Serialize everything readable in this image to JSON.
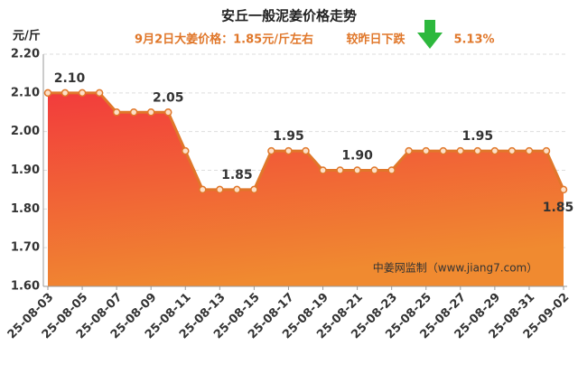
{
  "chart_data": {
    "type": "area",
    "title": "安丘一般泥姜价格走势",
    "subtitle": "9月2日大姜价格：1.85元/斤左右",
    "change_label": "较昨日下跌",
    "change_value": "5.13%",
    "y_label": "元/斤",
    "watermark": "中姜网监制（www.jiang7.com）",
    "categories": [
      "25-08-03",
      null,
      "25-08-05",
      null,
      "25-08-07",
      null,
      "25-08-09",
      null,
      "25-08-11",
      null,
      "25-08-13",
      null,
      "25-08-15",
      null,
      "25-08-17",
      null,
      "25-08-19",
      null,
      "25-08-21",
      null,
      "25-08-23",
      null,
      "25-08-25",
      null,
      "25-08-27",
      null,
      "25-08-29",
      null,
      "25-08-31",
      null,
      "25-09-02"
    ],
    "values": [
      2.1,
      2.1,
      2.1,
      2.1,
      2.05,
      2.05,
      2.05,
      2.05,
      1.95,
      1.85,
      1.85,
      1.85,
      1.85,
      1.95,
      1.95,
      1.95,
      1.9,
      1.9,
      1.9,
      1.9,
      1.9,
      1.95,
      1.95,
      1.95,
      1.95,
      1.95,
      1.95,
      1.95,
      1.95,
      1.95,
      1.85
    ],
    "value_labels": [
      "2.10",
      null,
      null,
      null,
      null,
      null,
      null,
      "2.05",
      null,
      null,
      null,
      "1.85",
      null,
      null,
      "1.95",
      null,
      null,
      null,
      "1.90",
      null,
      null,
      null,
      null,
      null,
      null,
      "1.95",
      null,
      null,
      null,
      null,
      "1.85"
    ],
    "color": "#e0772a",
    "ylim": [
      1.6,
      2.2
    ],
    "yticks": [
      {
        "value": 1.6,
        "label": "1.60"
      },
      {
        "value": 1.7,
        "label": "1.70"
      },
      {
        "value": 1.8,
        "label": "1.80"
      },
      {
        "value": 1.9,
        "label": "1.90"
      },
      {
        "value": 2.0,
        "label": "2.00"
      },
      {
        "value": 2.1,
        "label": "2.10"
      },
      {
        "value": 2.2,
        "label": "2.20"
      }
    ],
    "grid": true
  }
}
